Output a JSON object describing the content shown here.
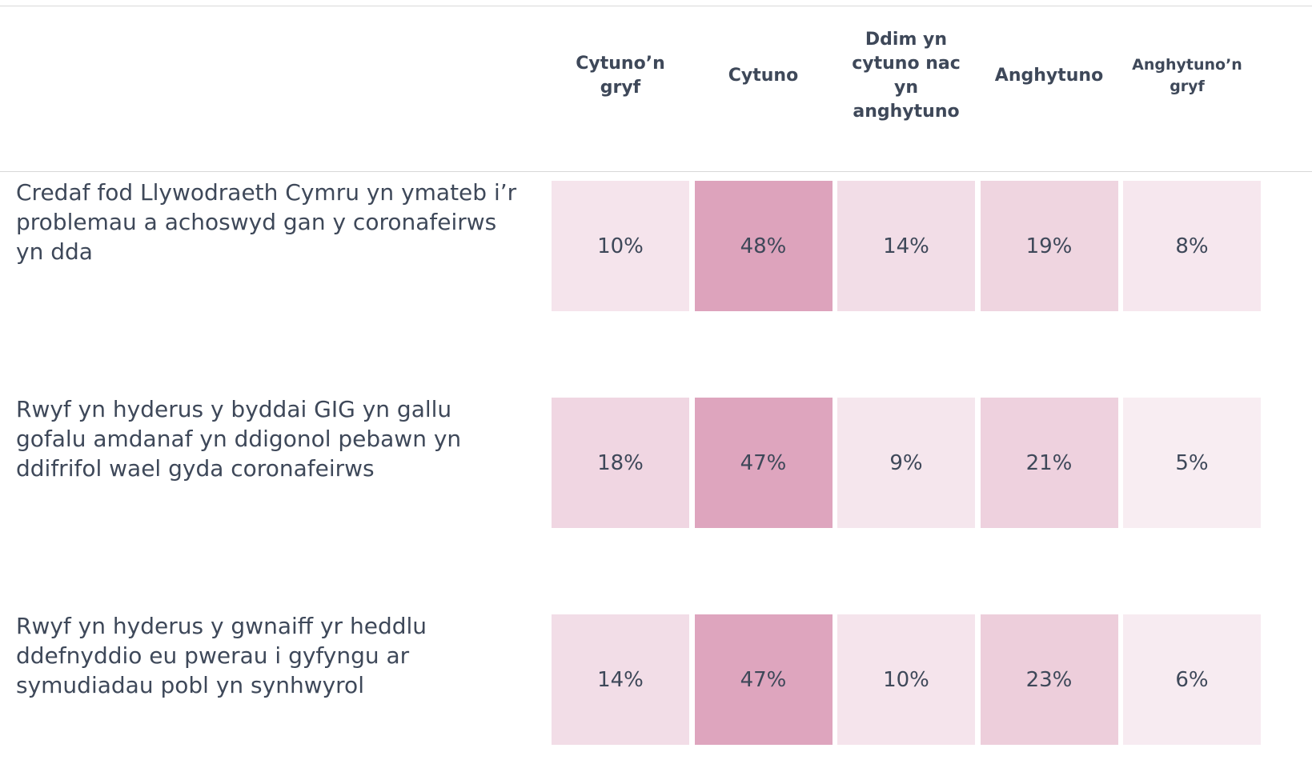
{
  "chart_data": {
    "type": "heatmap",
    "columns": [
      "Cytuno’n gryf",
      "Cytuno",
      "Ddim yn cytuno nac yn anghytuno",
      "Anghytuno",
      "Anghytuno’n gryf"
    ],
    "rows": [
      "Credaf fod Llywodraeth Cymru yn ymateb i’r problemau a achoswyd gan y coronafeirws yn dda",
      "Rwyf yn hyderus y byddai GIG yn gallu gofalu amdanaf yn ddigonol pebawn yn ddifrifol wael gyda coronafeirws",
      "Rwyf yn hyderus y gwnaiff yr heddlu ddefnyddio eu pwerau i gyfyngu ar symudiadau pobl yn synhwyrol"
    ],
    "values": [
      [
        10,
        48,
        14,
        19,
        8
      ],
      [
        18,
        47,
        9,
        21,
        5
      ],
      [
        14,
        47,
        10,
        23,
        6
      ]
    ],
    "value_labels": [
      [
        "10%",
        "48%",
        "14%",
        "19%",
        "8%"
      ],
      [
        "18%",
        "47%",
        "9%",
        "21%",
        "5%"
      ],
      [
        "14%",
        "47%",
        "10%",
        "23%",
        "6%"
      ]
    ],
    "color_low": "#fbf5f8",
    "color_high": "#dca0ba",
    "color_range": [
      0,
      50
    ]
  }
}
